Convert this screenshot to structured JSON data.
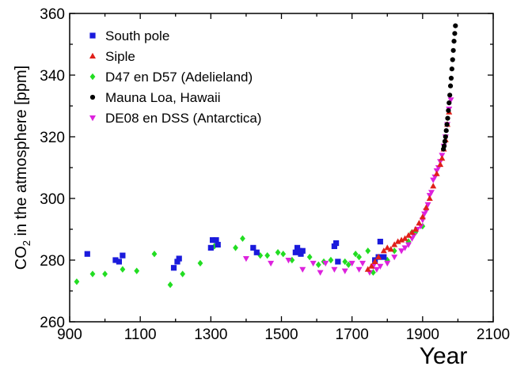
{
  "chart_data": {
    "type": "scatter",
    "xlabel": "Year",
    "ylabel_main": "CO",
    "ylabel_sub": "2",
    "ylabel_rest": " in the atmosphere [ppm]",
    "xlim": [
      900,
      2100
    ],
    "ylim": [
      260,
      360
    ],
    "xticks": [
      900,
      1100,
      1300,
      1500,
      1700,
      1900,
      2100
    ],
    "yticks": [
      260,
      280,
      300,
      320,
      340,
      360
    ],
    "legend_position": "top-left",
    "grid": false,
    "series": [
      {
        "name": "South pole",
        "marker": "square",
        "color": "#1a1adc",
        "points": [
          [
            950,
            282
          ],
          [
            1030,
            280
          ],
          [
            1040,
            279.5
          ],
          [
            1050,
            281.5
          ],
          [
            1195,
            277.5
          ],
          [
            1205,
            279.5
          ],
          [
            1210,
            280.5
          ],
          [
            1300,
            284
          ],
          [
            1305,
            286.5
          ],
          [
            1315,
            286.5
          ],
          [
            1320,
            285
          ],
          [
            1420,
            284
          ],
          [
            1430,
            282.5
          ],
          [
            1540,
            282.5
          ],
          [
            1545,
            284
          ],
          [
            1550,
            283
          ],
          [
            1555,
            282
          ],
          [
            1560,
            283
          ],
          [
            1650,
            284.5
          ],
          [
            1655,
            285.5
          ],
          [
            1660,
            279.5
          ],
          [
            1765,
            280
          ],
          [
            1775,
            281
          ],
          [
            1780,
            286
          ],
          [
            1790,
            281
          ]
        ]
      },
      {
        "name": "Siple",
        "marker": "triangle-up",
        "color": "#e0201a",
        "points": [
          [
            1745,
            277
          ],
          [
            1755,
            278
          ],
          [
            1765,
            279.5
          ],
          [
            1775,
            281
          ],
          [
            1790,
            283
          ],
          [
            1800,
            284
          ],
          [
            1810,
            283.5
          ],
          [
            1820,
            285
          ],
          [
            1830,
            286
          ],
          [
            1840,
            286.5
          ],
          [
            1850,
            287
          ],
          [
            1860,
            288
          ],
          [
            1870,
            289
          ],
          [
            1880,
            290
          ],
          [
            1890,
            292
          ],
          [
            1900,
            294
          ],
          [
            1910,
            297
          ],
          [
            1920,
            300
          ],
          [
            1930,
            304
          ],
          [
            1940,
            308
          ],
          [
            1950,
            311
          ],
          [
            1955,
            313
          ],
          [
            1960,
            316
          ],
          [
            1965,
            319
          ],
          [
            1970,
            324
          ],
          [
            1975,
            328
          ]
        ]
      },
      {
        "name": "D47 en D57 (Adelieland)",
        "marker": "diamond",
        "color": "#22dd22",
        "points": [
          [
            920,
            273
          ],
          [
            965,
            275.5
          ],
          [
            1000,
            275.5
          ],
          [
            1050,
            277
          ],
          [
            1090,
            276.5
          ],
          [
            1140,
            282
          ],
          [
            1185,
            272
          ],
          [
            1220,
            275.5
          ],
          [
            1270,
            279
          ],
          [
            1310,
            284.5
          ],
          [
            1370,
            284
          ],
          [
            1390,
            287
          ],
          [
            1440,
            281.5
          ],
          [
            1460,
            281.5
          ],
          [
            1490,
            282.5
          ],
          [
            1505,
            282
          ],
          [
            1530,
            280
          ],
          [
            1580,
            281
          ],
          [
            1605,
            278.5
          ],
          [
            1620,
            279.5
          ],
          [
            1640,
            280
          ],
          [
            1680,
            279.5
          ],
          [
            1690,
            278.5
          ],
          [
            1710,
            282
          ],
          [
            1720,
            281
          ],
          [
            1745,
            283
          ],
          [
            1760,
            276
          ],
          [
            1800,
            280
          ],
          [
            1820,
            283
          ],
          [
            1860,
            286
          ],
          [
            1870,
            289
          ],
          [
            1880,
            289
          ],
          [
            1900,
            291
          ]
        ]
      },
      {
        "name": "Mauna Loa, Hawaii",
        "marker": "circle",
        "color": "#000000",
        "points": [
          [
            1959,
            316
          ],
          [
            1961,
            317
          ],
          [
            1963,
            318.5
          ],
          [
            1965,
            320
          ],
          [
            1967,
            322
          ],
          [
            1969,
            324
          ],
          [
            1971,
            326
          ],
          [
            1973,
            328.5
          ],
          [
            1975,
            331
          ],
          [
            1977,
            333.5
          ],
          [
            1979,
            336.5
          ],
          [
            1981,
            339
          ],
          [
            1983,
            342
          ],
          [
            1985,
            345
          ],
          [
            1987,
            348
          ],
          [
            1989,
            351
          ],
          [
            1991,
            353.5
          ],
          [
            1993,
            356
          ]
        ]
      },
      {
        "name": "DE08 en DSS (Antarctica)",
        "marker": "triangle-down",
        "color": "#dd22dd",
        "points": [
          [
            1400,
            280.5
          ],
          [
            1470,
            279
          ],
          [
            1520,
            280
          ],
          [
            1560,
            277
          ],
          [
            1590,
            279
          ],
          [
            1610,
            276
          ],
          [
            1625,
            279
          ],
          [
            1650,
            277
          ],
          [
            1680,
            276.5
          ],
          [
            1700,
            279
          ],
          [
            1720,
            277
          ],
          [
            1730,
            279
          ],
          [
            1750,
            276
          ],
          [
            1760,
            278
          ],
          [
            1770,
            277
          ],
          [
            1780,
            278
          ],
          [
            1800,
            279
          ],
          [
            1820,
            281
          ],
          [
            1840,
            283
          ],
          [
            1850,
            284
          ],
          [
            1860,
            285
          ],
          [
            1870,
            287
          ],
          [
            1875,
            288
          ],
          [
            1885,
            290
          ],
          [
            1895,
            291
          ],
          [
            1900,
            293
          ],
          [
            1905,
            295
          ],
          [
            1910,
            296
          ],
          [
            1915,
            298
          ],
          [
            1920,
            301
          ],
          [
            1925,
            302
          ],
          [
            1930,
            306
          ],
          [
            1935,
            307
          ],
          [
            1940,
            309
          ],
          [
            1945,
            310
          ],
          [
            1950,
            312
          ],
          [
            1955,
            314
          ],
          [
            1960,
            317
          ],
          [
            1965,
            320
          ],
          [
            1970,
            324
          ],
          [
            1975,
            329
          ],
          [
            1980,
            332
          ]
        ]
      }
    ]
  }
}
